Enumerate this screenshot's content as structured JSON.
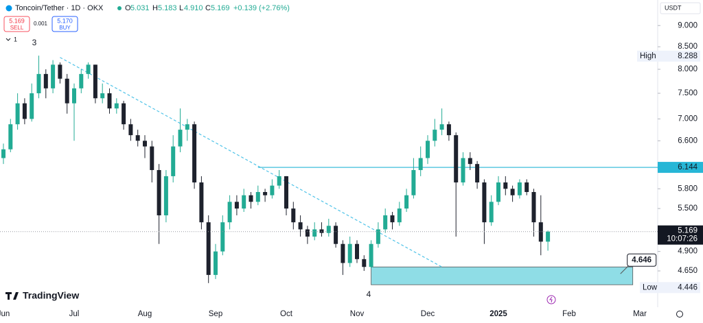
{
  "chart_data": {
    "type": "candlestick",
    "header": {
      "symbol": "Toncoin/Tether · 1D · OKX",
      "o_label": "O",
      "o": "5.031",
      "h_label": "H",
      "h": "5.183",
      "l_label": "L",
      "l": "4.910",
      "c_label": "C",
      "c": "5.169",
      "change": "+0.139 (+2.76%)"
    },
    "trade": {
      "sell_price": "5.169",
      "sell": "SELL",
      "spread": "0.001",
      "buy_price": "5.170",
      "buy": "BUY",
      "indicators": "1"
    },
    "currency": "USDT",
    "brand": "TradingView",
    "wave_labels": [
      "3",
      "4"
    ],
    "log_scale": true,
    "up_color": "#22ab94",
    "down_color": "#1e222d",
    "categories": [
      "Jun",
      null,
      null,
      null,
      null,
      null,
      null,
      null,
      null,
      null,
      "Jul",
      null,
      null,
      null,
      null,
      null,
      null,
      null,
      null,
      null,
      "Aug",
      null,
      null,
      null,
      null,
      null,
      null,
      null,
      null,
      null,
      "Sep",
      null,
      null,
      null,
      null,
      null,
      null,
      null,
      null,
      null,
      "Oct",
      null,
      null,
      null,
      null,
      null,
      null,
      null,
      null,
      null,
      "Nov",
      null,
      null,
      null,
      null,
      null,
      null,
      null,
      null,
      null,
      "Dec",
      null,
      null,
      null,
      null,
      null,
      null,
      null,
      null,
      null,
      "2025",
      null,
      null,
      null,
      null,
      null,
      null,
      null,
      null,
      null,
      "Feb",
      null,
      null,
      null,
      null,
      null,
      null,
      null,
      null,
      null,
      "Mar"
    ],
    "ohlc": [
      [
        6.3,
        6.55,
        6.2,
        6.45
      ],
      [
        6.45,
        7.0,
        6.4,
        6.9
      ],
      [
        6.9,
        7.5,
        6.8,
        7.3
      ],
      [
        7.3,
        7.4,
        6.9,
        7.0
      ],
      [
        7.0,
        7.7,
        6.95,
        7.5
      ],
      [
        7.5,
        8.3,
        7.4,
        7.9
      ],
      [
        7.9,
        8.0,
        7.4,
        7.6
      ],
      [
        7.6,
        8.2,
        7.5,
        8.1
      ],
      [
        8.1,
        8.15,
        7.7,
        7.8
      ],
      [
        7.8,
        7.9,
        7.1,
        7.3
      ],
      [
        7.3,
        7.7,
        6.6,
        7.6
      ],
      [
        7.6,
        8.0,
        7.5,
        7.9
      ],
      [
        7.9,
        8.15,
        7.8,
        8.1
      ],
      [
        8.1,
        8.1,
        7.3,
        7.4
      ],
      [
        7.4,
        7.7,
        7.3,
        7.5
      ],
      [
        7.5,
        7.6,
        7.1,
        7.2
      ],
      [
        7.2,
        7.4,
        7.1,
        7.3
      ],
      [
        7.3,
        7.35,
        6.8,
        6.9
      ],
      [
        6.9,
        7.0,
        6.6,
        6.7
      ],
      [
        6.7,
        6.8,
        6.5,
        6.6
      ],
      [
        6.6,
        6.7,
        6.3,
        6.5
      ],
      [
        6.5,
        6.6,
        5.9,
        6.1
      ],
      [
        6.1,
        6.2,
        5.0,
        5.4
      ],
      [
        5.4,
        6.1,
        5.3,
        6.0
      ],
      [
        6.0,
        6.7,
        5.9,
        6.5
      ],
      [
        6.5,
        7.2,
        6.4,
        6.8
      ],
      [
        6.8,
        7.0,
        6.6,
        6.9
      ],
      [
        6.9,
        6.95,
        5.8,
        5.9
      ],
      [
        5.9,
        6.0,
        5.2,
        5.3
      ],
      [
        5.3,
        5.4,
        4.5,
        4.6
      ],
      [
        4.6,
        5.0,
        4.55,
        4.9
      ],
      [
        4.9,
        5.4,
        4.85,
        5.3
      ],
      [
        5.3,
        5.7,
        5.2,
        5.6
      ],
      [
        5.6,
        5.7,
        5.4,
        5.5
      ],
      [
        5.5,
        5.8,
        5.45,
        5.7
      ],
      [
        5.7,
        5.75,
        5.5,
        5.6
      ],
      [
        5.6,
        5.85,
        5.55,
        5.75
      ],
      [
        5.75,
        5.8,
        5.6,
        5.7
      ],
      [
        5.7,
        5.95,
        5.65,
        5.85
      ],
      [
        5.85,
        6.1,
        5.8,
        6.0
      ],
      [
        6.0,
        6.0,
        5.4,
        5.5
      ],
      [
        5.5,
        5.6,
        5.2,
        5.3
      ],
      [
        5.3,
        5.4,
        5.1,
        5.2
      ],
      [
        5.2,
        5.25,
        5.0,
        5.1
      ],
      [
        5.1,
        5.3,
        5.05,
        5.2
      ],
      [
        5.2,
        5.3,
        5.1,
        5.15
      ],
      [
        5.15,
        5.35,
        5.1,
        5.25
      ],
      [
        5.25,
        5.3,
        4.95,
        5.0
      ],
      [
        5.0,
        5.05,
        4.6,
        4.75
      ],
      [
        4.75,
        5.1,
        4.7,
        5.0
      ],
      [
        5.0,
        5.05,
        4.75,
        4.8
      ],
      [
        4.8,
        4.85,
        4.65,
        4.7
      ],
      [
        4.7,
        5.05,
        4.68,
        5.0
      ],
      [
        5.0,
        5.3,
        4.95,
        5.2
      ],
      [
        5.2,
        5.5,
        5.15,
        5.4
      ],
      [
        5.4,
        5.45,
        5.2,
        5.3
      ],
      [
        5.3,
        5.6,
        5.25,
        5.5
      ],
      [
        5.5,
        5.8,
        5.45,
        5.7
      ],
      [
        5.7,
        6.3,
        5.65,
        6.1
      ],
      [
        6.1,
        6.5,
        6.0,
        6.3
      ],
      [
        6.3,
        6.7,
        6.2,
        6.6
      ],
      [
        6.6,
        7.0,
        6.5,
        6.8
      ],
      [
        6.8,
        7.2,
        6.7,
        6.9
      ],
      [
        6.9,
        6.95,
        6.6,
        6.7
      ],
      [
        6.7,
        6.75,
        5.1,
        5.9
      ],
      [
        5.9,
        6.4,
        5.85,
        6.3
      ],
      [
        6.3,
        6.4,
        6.1,
        6.2
      ],
      [
        6.2,
        6.25,
        5.8,
        5.9
      ],
      [
        5.9,
        5.95,
        5.0,
        5.3
      ],
      [
        5.3,
        5.7,
        5.25,
        5.6
      ],
      [
        5.6,
        6.0,
        5.55,
        5.9
      ],
      [
        5.9,
        6.0,
        5.7,
        5.8
      ],
      [
        5.8,
        5.85,
        5.6,
        5.7
      ],
      [
        5.7,
        5.95,
        5.65,
        5.9
      ],
      [
        5.9,
        5.95,
        5.7,
        5.75
      ],
      [
        5.75,
        5.8,
        5.1,
        5.3
      ],
      [
        5.3,
        5.7,
        4.85,
        5.031
      ],
      [
        5.031,
        5.183,
        4.91,
        5.169
      ]
    ],
    "ylim": [
      4.217,
      9.64
    ],
    "yticks": [
      {
        "value": 9,
        "label": "9.000"
      },
      {
        "value": 8.5,
        "label": "8.500"
      },
      {
        "value": 8,
        "label": "8.000"
      },
      {
        "value": 7.5,
        "label": "7.500"
      },
      {
        "value": 7,
        "label": "7.000"
      },
      {
        "value": 6.6,
        "label": "6.600"
      },
      {
        "value": 5.8,
        "label": "5.800"
      },
      {
        "value": 5.5,
        "label": "5.500"
      },
      {
        "value": 4.9,
        "label": "4.900"
      },
      {
        "value": 4.65,
        "label": "4.650"
      }
    ],
    "countdown": "10:07:26",
    "high": {
      "label": "High",
      "value": 8.288
    },
    "low": {
      "label": "Low",
      "value": 4.446
    },
    "trendline": {
      "points": [
        [
          8,
          8.26
        ],
        [
          62,
          4.7
        ]
      ],
      "color": "#4fc3e8"
    },
    "level": {
      "value": 6.144,
      "start_index": 36,
      "color": "#26b6d6"
    },
    "zone": {
      "low": 4.48,
      "high": 4.7,
      "start_index": 52,
      "end_index": 89,
      "label": 4.646,
      "color": "#8fdde6"
    }
  }
}
